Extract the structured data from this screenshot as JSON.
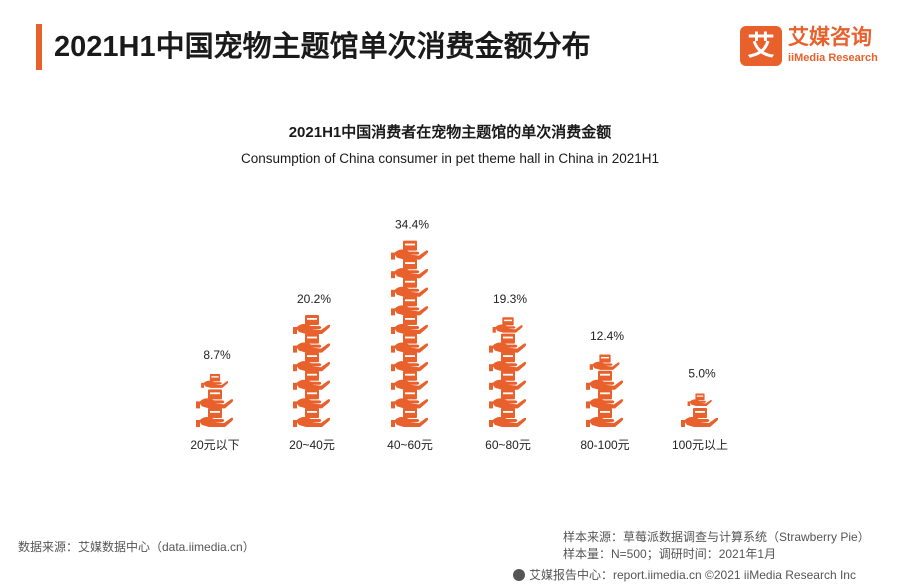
{
  "header": {
    "title": "2021H1中国宠物主题馆单次消费金额分布",
    "logo_mark": "艾",
    "logo_cn": "艾媒咨询",
    "logo_en": "iiMedia Research"
  },
  "colors": {
    "accent": "#e8612c",
    "text": "#1a1a1a",
    "muted": "#555555"
  },
  "chart_data": {
    "type": "bar",
    "title": "2021H1中国消费者在宠物主题馆的单次消费金额",
    "subtitle": "Consumption of China consumer in pet theme hall in China in 2021H1",
    "categories": [
      "20元以下",
      "20~40元",
      "40~60元",
      "60~80元",
      "80-100元",
      "100元以上"
    ],
    "values": [
      8.7,
      20.2,
      34.4,
      19.3,
      12.4,
      5.0
    ],
    "value_labels": [
      "8.7%",
      "20.2%",
      "34.4%",
      "19.3%",
      "12.4%",
      "5.0%"
    ],
    "unit": "%",
    "icon": "hand-holding-box-icon",
    "grid": false,
    "legend": "none"
  },
  "footer": {
    "source_left": "数据来源：艾媒数据中心（data.iimedia.cn）",
    "sample_source": "样本来源：草莓派数据调查与计算系统（Strawberry Pie）",
    "sample_size": "样本量：N=500；调研时间：2021年1月",
    "report_center": "艾媒报告中心：report.iimedia.cn  ©2021  iiMedia Research  Inc"
  }
}
